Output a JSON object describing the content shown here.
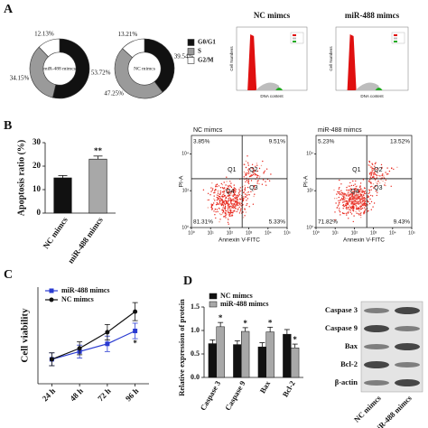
{
  "panel_labels": [
    "A",
    "B",
    "C",
    "D"
  ],
  "chart_data": [
    {
      "type": "donut",
      "center_label": "miR-488 mimcs",
      "categories": [
        "G0/G1",
        "S",
        "G2/M"
      ],
      "values": [
        53.72,
        34.15,
        12.13
      ],
      "value_labels": [
        "53.72%",
        "34.15%",
        "12.13%"
      ],
      "colors": [
        "#111111",
        "#9a9a9a",
        "#ffffff"
      ]
    },
    {
      "type": "donut",
      "center_label": "NC mimcs",
      "categories": [
        "G0/G1",
        "S",
        "G2/M"
      ],
      "values": [
        39.54,
        47.25,
        13.21
      ],
      "value_labels": [
        "39.54%",
        "47.25%",
        "13.21%"
      ],
      "colors": [
        "#111111",
        "#9a9a9a",
        "#ffffff"
      ],
      "legend": "right"
    },
    {
      "type": "histogram-image",
      "title": "NC mimcs",
      "xlabel": "DNA content",
      "ylabel": "Cell Numbers"
    },
    {
      "type": "histogram-image",
      "title": "miR-488 mimcs",
      "xlabel": "DNA content",
      "ylabel": "Cell Numbers"
    },
    {
      "type": "bar",
      "categories": [
        "NC mimcs",
        "miR-488 mimcs"
      ],
      "values": [
        15,
        23
      ],
      "errors": [
        1,
        1.3
      ],
      "colors": [
        "#111111",
        "#a8a8a8"
      ],
      "ylim": [
        0,
        30
      ],
      "yticks": [
        0,
        10,
        20,
        30
      ],
      "ylabel": "Apoptosis ratio (%)",
      "annotations": [
        {
          "index": 1,
          "text": "**"
        }
      ]
    },
    {
      "type": "flow-scatter",
      "title": "NC mimcs",
      "xlabel": "Annexin V-FITC",
      "ylabel": "PI-A",
      "log": true,
      "xlim": [
        1,
        100000
      ],
      "ylim": [
        1,
        100000
      ],
      "xticks": [
        {
          "value": 1,
          "label": "10⁰"
        },
        {
          "value": 10,
          "label": "10¹"
        },
        {
          "value": 100,
          "label": "10²"
        },
        {
          "value": 1000,
          "label": "10³"
        },
        {
          "value": 10000,
          "label": "10⁴"
        },
        {
          "value": 100000,
          "label": "10⁵"
        }
      ],
      "yticks": [
        {
          "value": 1,
          "label": "10⁰"
        },
        {
          "value": 100,
          "label": "10²"
        },
        {
          "value": 10000,
          "label": "10⁴"
        }
      ],
      "quadrants": [
        "Q1",
        "Q2",
        "Q3",
        "Q4"
      ],
      "values": [
        3.85,
        9.51,
        5.33,
        81.31
      ],
      "value_labels": [
        "3.85%",
        "9.51%",
        "5.33%",
        "81.31%"
      ]
    },
    {
      "type": "flow-scatter",
      "title": "miR-488 mimcs",
      "xlabel": "Annexin V-FITC",
      "ylabel": "PI-A",
      "log": true,
      "xlim": [
        1,
        100000
      ],
      "ylim": [
        1,
        100000
      ],
      "xticks": [
        {
          "value": 1,
          "label": "10⁰"
        },
        {
          "value": 10,
          "label": "10¹"
        },
        {
          "value": 100,
          "label": "10²"
        },
        {
          "value": 1000,
          "label": "10³"
        },
        {
          "value": 10000,
          "label": "10⁴"
        },
        {
          "value": 100000,
          "label": "10⁵"
        }
      ],
      "yticks": [
        {
          "value": 1,
          "label": "10⁰"
        },
        {
          "value": 100,
          "label": "10²"
        },
        {
          "value": 10000,
          "label": "10⁴"
        }
      ],
      "quadrants": [
        "Q1",
        "Q2",
        "Q3",
        "Q4"
      ],
      "values": [
        5.23,
        13.52,
        9.43,
        71.82
      ],
      "value_labels": [
        "5.23%",
        "13.52%",
        "9.43%",
        "71.82%"
      ]
    },
    {
      "type": "line",
      "categories": [
        "24 h",
        "48 h",
        "72 h",
        "96 h"
      ],
      "ylim": [
        0,
        1.5
      ],
      "ylabel": "Cell viability",
      "legend": "upper-left",
      "series": [
        {
          "name": "miR-488 mimcs",
          "color": "#2a3bd1",
          "marker": "square",
          "values": [
            0.38,
            0.5,
            0.62,
            0.82
          ],
          "errors": [
            0.1,
            0.1,
            0.12,
            0.12
          ]
        },
        {
          "name": "NC mimcs",
          "color": "#111111",
          "marker": "circle",
          "values": [
            0.38,
            0.55,
            0.8,
            1.12
          ],
          "errors": [
            0.1,
            0.1,
            0.12,
            0.14
          ]
        }
      ],
      "annotations": [
        {
          "index": 3,
          "text": "*"
        }
      ]
    },
    {
      "type": "grouped-bar",
      "categories": [
        "Caspase 3",
        "Caspase 9",
        "Bax",
        "Bcl-2"
      ],
      "ylim": [
        0,
        1.5
      ],
      "yticks": [
        {
          "value": 0,
          "label": "0.0"
        },
        0.5,
        {
          "value": 1,
          "label": "1.0"
        },
        1.5
      ],
      "ylabel": "Relative expression of protein",
      "legend": "upper-left",
      "series": [
        {
          "name": "NC mimcs",
          "color": "#111111",
          "values": [
            0.72,
            0.7,
            0.65,
            0.92
          ],
          "errors": [
            0.08,
            0.08,
            0.09,
            0.1
          ]
        },
        {
          "name": "miR-488 mimcs",
          "color": "#a8a8a8",
          "values": [
            1.08,
            0.98,
            0.97,
            0.63
          ],
          "errors": [
            0.09,
            0.08,
            0.1,
            0.08
          ]
        }
      ],
      "annotations": [
        {
          "series": 1,
          "index": 0,
          "text": "*"
        },
        {
          "series": 1,
          "index": 1,
          "text": "*"
        },
        {
          "series": 1,
          "index": 2,
          "text": "*"
        },
        {
          "series": 1,
          "index": 3,
          "text": "*"
        }
      ]
    }
  ],
  "western_blot": {
    "rows": [
      "Caspase 3",
      "Caspase 9",
      "Bax",
      "Bcl-2",
      "β-actin"
    ],
    "lanes": [
      "NC mimcs",
      "miR-488 mimcs"
    ]
  }
}
